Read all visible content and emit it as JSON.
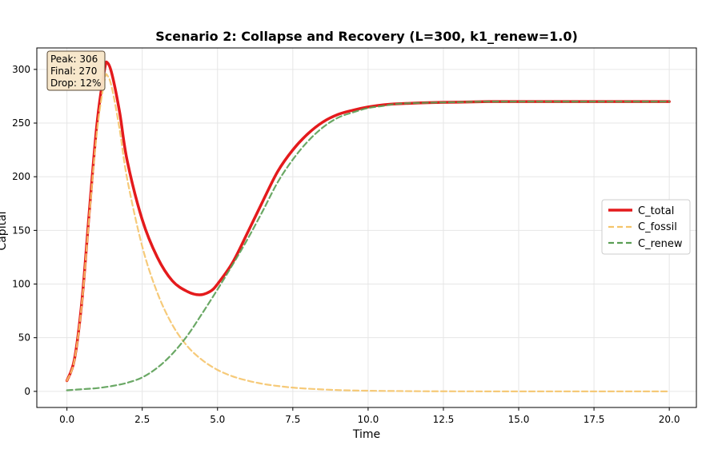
{
  "chart_data": {
    "type": "line",
    "title": "Scenario 2: Collapse and Recovery (L=300, k1_renew=1.0)",
    "xlabel": "Time",
    "ylabel": "Capital",
    "xlim": [
      -1.0,
      20.9
    ],
    "ylim": [
      -15,
      320
    ],
    "xticks": [
      0.0,
      2.5,
      5.0,
      7.5,
      10.0,
      12.5,
      15.0,
      17.5,
      20.0
    ],
    "xtick_labels": [
      "0.0",
      "2.5",
      "5.0",
      "7.5",
      "10.0",
      "12.5",
      "15.0",
      "17.5",
      "20.0"
    ],
    "yticks": [
      0,
      50,
      100,
      150,
      200,
      250,
      300
    ],
    "ytick_labels": [
      "0",
      "50",
      "100",
      "150",
      "200",
      "250",
      "300"
    ],
    "grid": true,
    "legend_position": "center-right",
    "annotation": [
      "Peak: 306",
      "Final: 270",
      "Drop: 12%"
    ],
    "series": [
      {
        "name": "C_total",
        "color": "#e41a1c",
        "style": "solid",
        "x": [
          0,
          0.25,
          0.5,
          0.75,
          1.0,
          1.25,
          1.35,
          1.5,
          1.75,
          2.0,
          2.5,
          3.0,
          3.5,
          4.0,
          4.4,
          4.75,
          5.0,
          5.5,
          6.0,
          6.5,
          7.0,
          7.5,
          8.0,
          8.5,
          9.0,
          9.5,
          10.0,
          10.5,
          11.0,
          12.0,
          13.0,
          14.0,
          15.0,
          16.0,
          18.0,
          20.0
        ],
        "y": [
          10,
          30,
          85,
          170,
          250,
          300,
          306,
          295,
          260,
          215,
          160,
          125,
          103,
          93,
          90,
          93,
          100,
          120,
          148,
          177,
          205,
          225,
          240,
          251,
          258,
          262,
          265,
          267,
          268,
          269,
          269.5,
          270,
          270,
          270,
          270,
          270
        ]
      },
      {
        "name": "C_fossil",
        "color": "#f5c46a",
        "style": "dashed",
        "x": [
          0,
          0.25,
          0.5,
          0.75,
          1.0,
          1.25,
          1.35,
          1.5,
          1.75,
          2.0,
          2.5,
          3.0,
          3.5,
          4.0,
          4.5,
          5.0,
          5.5,
          6.0,
          6.5,
          7.0,
          7.5,
          8.0,
          9.0,
          10.0,
          11.0,
          12.0,
          14.0,
          16.0,
          18.0,
          20.0
        ],
        "y": [
          10,
          29,
          83,
          166,
          243,
          290,
          294,
          282,
          244,
          198,
          135,
          92,
          62,
          42,
          29,
          20,
          14,
          10,
          7,
          5,
          3.5,
          2.5,
          1.2,
          0.6,
          0.3,
          0.1,
          0,
          0,
          0,
          0
        ]
      },
      {
        "name": "C_renew",
        "color": "#5a9e54",
        "style": "dashed",
        "x": [
          0,
          0.5,
          1.0,
          1.5,
          2.0,
          2.5,
          3.0,
          3.5,
          4.0,
          4.5,
          5.0,
          5.5,
          6.0,
          6.5,
          7.0,
          7.5,
          8.0,
          8.5,
          9.0,
          9.5,
          10.0,
          10.5,
          11.0,
          12.0,
          13.0,
          14.0,
          16.0,
          18.0,
          20.0
        ],
        "y": [
          1,
          2,
          3,
          5,
          8,
          13,
          22,
          35,
          52,
          73,
          95,
          118,
          142,
          168,
          195,
          216,
          233,
          246,
          255,
          260,
          264,
          266,
          268,
          269,
          269.5,
          270,
          270,
          270,
          270
        ]
      }
    ]
  }
}
